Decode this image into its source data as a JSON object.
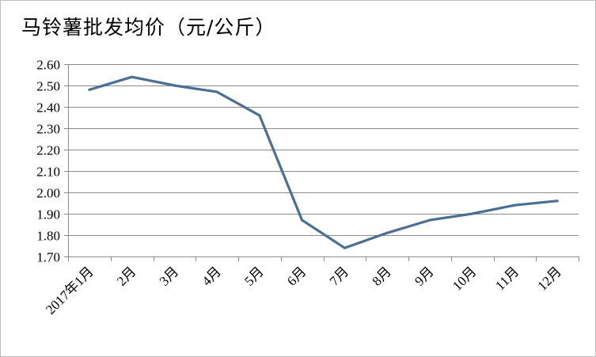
{
  "chart_data": {
    "type": "line",
    "title": "马铃薯批发均价（元/公斤）",
    "xlabel": "",
    "ylabel": "",
    "categories": [
      "2017年1月",
      "2月",
      "3月",
      "4月",
      "5月",
      "6月",
      "7月",
      "8月",
      "9月",
      "10月",
      "11月",
      "12月"
    ],
    "series": [
      {
        "values": [
          2.48,
          2.54,
          2.5,
          2.47,
          2.36,
          1.87,
          1.74,
          1.81,
          1.87,
          1.9,
          1.94,
          1.96
        ],
        "color": "#4a6f96"
      }
    ],
    "ylim": [
      1.7,
      2.6
    ],
    "yticks": [
      "1.70",
      "1.80",
      "1.90",
      "2.00",
      "2.10",
      "2.20",
      "2.30",
      "2.40",
      "2.50",
      "2.60"
    ],
    "grid": true,
    "legend": "none",
    "colors": {
      "gridline": "#8c8c8c",
      "axis": "#8c8c8c",
      "line": "#4a6f96"
    }
  }
}
